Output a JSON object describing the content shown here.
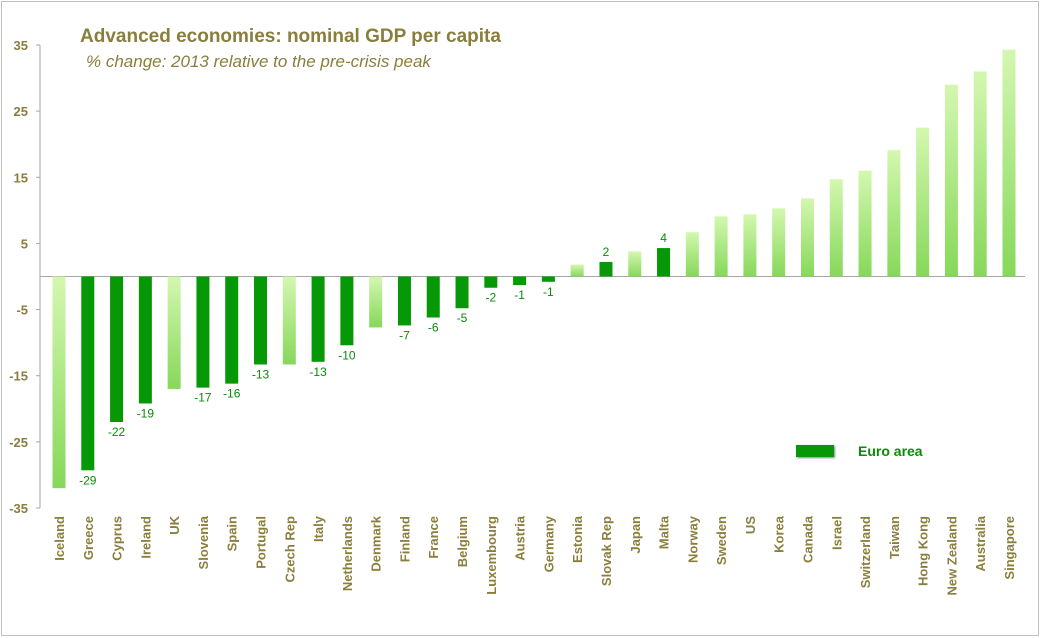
{
  "chart_data": {
    "type": "bar",
    "title": "Advanced economies: nominal GDP per capita",
    "subtitle": "% change: 2013 relative to the pre-crisis peak",
    "xlabel": "",
    "ylabel": "",
    "ylim": [
      -35,
      35
    ],
    "yticks": [
      -35,
      -25,
      -15,
      -5,
      5,
      15,
      25,
      35
    ],
    "grid": false,
    "legend": {
      "position": "bottom-right",
      "entries": [
        "Euro area"
      ]
    },
    "colors": {
      "euro_area": "#069806",
      "other_top": "#d4f7b0",
      "other_bottom": "#86d85a",
      "text": "#8a7e3c",
      "label": "#0a8a0a"
    },
    "categories": [
      "Iceland",
      "Greece",
      "Cyprus",
      "Ireland",
      "UK",
      "Slovenia",
      "Spain",
      "Portugal",
      "Czech Rep",
      "Italy",
      "Netherlands",
      "Denmark",
      "Finland",
      "France",
      "Belgium",
      "Luxembourg",
      "Austria",
      "Germany",
      "Estonia",
      "Slovak Rep",
      "Japan",
      "Malta",
      "Norway",
      "Sweden",
      "US",
      "Korea",
      "Canada",
      "Israel",
      "Switzerland",
      "Taiwan",
      "Hong Kong",
      "New Zealand",
      "Australia",
      "Singapore"
    ],
    "values": [
      -32,
      -29.3,
      -22,
      -19.2,
      -17,
      -16.8,
      -16.2,
      -13.3,
      -13.3,
      -12.9,
      -10.4,
      -7.7,
      -7.4,
      -6.2,
      -4.8,
      -1.7,
      -1.3,
      -0.8,
      1.8,
      2.2,
      3.8,
      4.3,
      6.7,
      9.1,
      9.4,
      10.3,
      11.8,
      14.7,
      16.0,
      19.1,
      22.5,
      29.0,
      31.0,
      34.3
    ],
    "euro_area": [
      false,
      true,
      true,
      true,
      false,
      true,
      true,
      true,
      false,
      true,
      true,
      false,
      true,
      true,
      true,
      true,
      true,
      true,
      false,
      true,
      false,
      true,
      false,
      false,
      false,
      false,
      false,
      false,
      false,
      false,
      false,
      false,
      false,
      false
    ],
    "data_labels": [
      "",
      "-29",
      "-22",
      "-19",
      "",
      "-17",
      "-16",
      "-13",
      "",
      "-13",
      "-10",
      "",
      "-7",
      "-6",
      "-5",
      "-2",
      "-1",
      "-1",
      "",
      "2",
      "",
      "4",
      "",
      "",
      "",
      "",
      "",
      "",
      "",
      "",
      "",
      "",
      "",
      ""
    ]
  }
}
